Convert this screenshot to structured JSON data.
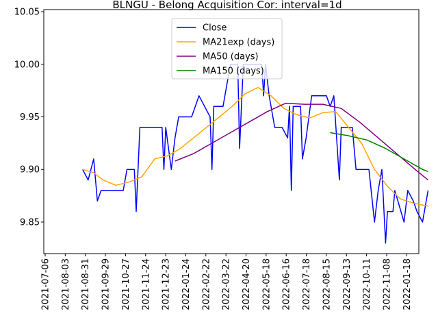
{
  "chart_data": {
    "type": "line",
    "title": "BLNGU - Belong Acquisition Cor: interval=1d",
    "xlabel": "",
    "ylabel": "",
    "xlim": [
      "2021-07-06",
      "2022-01-25"
    ],
    "ylim": [
      9.82,
      10.052
    ],
    "grid": false,
    "legend_position": "upper-center",
    "x_ticks": [
      "2021-07-06",
      "2021-08-03",
      "2021-08-31",
      "2021-09-29",
      "2021-10-27",
      "2021-11-24",
      "2021-12-23",
      "2022-01-24",
      "2022-02-22",
      "2022-03-22",
      "2022-04-20",
      "2022-05-18",
      "2022-06-16",
      "2022-07-18",
      "2022-08-15",
      "2022-09-13",
      "2022-10-11",
      "2022-11-08",
      "2022-01-18"
    ],
    "y_ticks": [
      9.85,
      9.9,
      9.95,
      10.0,
      10.05
    ],
    "y_tick_labels": [
      "9.85",
      "9.90",
      "9.95",
      "10.00",
      "10.05"
    ],
    "series": [
      {
        "name": "Close",
        "color": "#0000ff",
        "points": [
          [
            "2021-07-27",
            9.9
          ],
          [
            "2021-07-30",
            9.89
          ],
          [
            "2021-08-02",
            9.91
          ],
          [
            "2021-08-04",
            9.87
          ],
          [
            "2021-08-06",
            9.88
          ],
          [
            "2021-08-18",
            9.88
          ],
          [
            "2021-08-20",
            9.9
          ],
          [
            "2021-08-24",
            9.9
          ],
          [
            "2021-08-25",
            9.86
          ],
          [
            "2021-08-27",
            9.94
          ],
          [
            "2021-09-08",
            9.94
          ],
          [
            "2021-09-09",
            9.9
          ],
          [
            "2021-09-10",
            9.94
          ],
          [
            "2021-09-13",
            9.9
          ],
          [
            "2021-09-15",
            9.93
          ],
          [
            "2021-09-17",
            9.95
          ],
          [
            "2021-09-20",
            9.95
          ],
          [
            "2021-09-24",
            9.95
          ],
          [
            "2021-09-28",
            9.97
          ],
          [
            "2021-10-01",
            9.96
          ],
          [
            "2021-10-04",
            9.95
          ],
          [
            "2021-10-05",
            9.9
          ],
          [
            "2021-10-06",
            9.96
          ],
          [
            "2021-10-11",
            9.96
          ],
          [
            "2021-10-13",
            9.98
          ],
          [
            "2021-10-15",
            10.0
          ],
          [
            "2021-10-19",
            10.0
          ],
          [
            "2021-10-20",
            9.92
          ],
          [
            "2021-10-22",
            10.0
          ],
          [
            "2021-11-01",
            10.0
          ],
          [
            "2021-11-02",
            9.97
          ],
          [
            "2021-11-03",
            10.0
          ],
          [
            "2021-11-05",
            9.97
          ],
          [
            "2021-11-08",
            9.94
          ],
          [
            "2021-11-12",
            9.94
          ],
          [
            "2021-11-15",
            9.93
          ],
          [
            "2021-11-16",
            9.96
          ],
          [
            "2021-11-17",
            9.88
          ],
          [
            "2021-11-18",
            9.96
          ],
          [
            "2021-11-22",
            9.96
          ],
          [
            "2021-11-23",
            9.91
          ],
          [
            "2021-11-25",
            9.93
          ],
          [
            "2021-11-28",
            9.97
          ],
          [
            "2021-12-06",
            9.97
          ],
          [
            "2021-12-08",
            9.96
          ],
          [
            "2021-12-10",
            9.97
          ],
          [
            "2021-12-13",
            9.89
          ],
          [
            "2021-12-14",
            9.94
          ],
          [
            "2021-12-20",
            9.94
          ],
          [
            "2021-12-22",
            9.9
          ],
          [
            "2021-12-29",
            9.9
          ],
          [
            "2022-01-01",
            9.85
          ],
          [
            "2022-01-03",
            9.88
          ],
          [
            "2022-01-05",
            9.9
          ],
          [
            "2022-01-07",
            9.83
          ],
          [
            "2022-01-08",
            9.86
          ],
          [
            "2022-01-11",
            9.86
          ],
          [
            "2022-01-12",
            9.88
          ],
          [
            "2022-01-17",
            9.85
          ],
          [
            "2022-01-19",
            9.88
          ],
          [
            "2022-01-22",
            9.87
          ],
          [
            "2022-01-24",
            9.86
          ],
          [
            "2022-01-27",
            9.85
          ],
          [
            "2022-01-30",
            9.88
          ]
        ]
      },
      {
        "name": "MA21exp (days)",
        "color": "#ffa500",
        "points": [
          [
            "2021-07-27",
            9.9
          ],
          [
            "2021-08-02",
            9.897
          ],
          [
            "2021-08-07",
            9.89
          ],
          [
            "2021-08-14",
            9.885
          ],
          [
            "2021-08-21",
            9.888
          ],
          [
            "2021-08-28",
            9.893
          ],
          [
            "2021-09-04",
            9.91
          ],
          [
            "2021-09-11",
            9.913
          ],
          [
            "2021-09-18",
            9.92
          ],
          [
            "2021-09-25",
            9.93
          ],
          [
            "2021-10-02",
            9.94
          ],
          [
            "2021-10-09",
            9.95
          ],
          [
            "2021-10-16",
            9.96
          ],
          [
            "2021-10-23",
            9.972
          ],
          [
            "2021-10-30",
            9.978
          ],
          [
            "2021-11-06",
            9.97
          ],
          [
            "2021-11-13",
            9.958
          ],
          [
            "2021-11-20",
            9.952
          ],
          [
            "2021-11-27",
            9.949
          ],
          [
            "2021-12-04",
            9.954
          ],
          [
            "2021-12-11",
            9.955
          ],
          [
            "2021-12-18",
            9.94
          ],
          [
            "2021-12-25",
            9.925
          ],
          [
            "2022-01-01",
            9.9
          ],
          [
            "2022-01-08",
            9.884
          ],
          [
            "2022-01-15",
            9.872
          ],
          [
            "2022-01-22",
            9.868
          ],
          [
            "2022-01-30",
            9.865
          ]
        ]
      },
      {
        "name": "MA50 (days)",
        "color": "#800080",
        "points": [
          [
            "2021-09-15",
            9.908
          ],
          [
            "2021-09-25",
            9.915
          ],
          [
            "2021-10-05",
            9.925
          ],
          [
            "2021-10-15",
            9.935
          ],
          [
            "2021-10-25",
            9.945
          ],
          [
            "2021-11-04",
            9.955
          ],
          [
            "2021-11-14",
            9.963
          ],
          [
            "2021-11-24",
            9.962
          ],
          [
            "2021-12-04",
            9.962
          ],
          [
            "2021-12-14",
            9.958
          ],
          [
            "2021-12-24",
            9.945
          ],
          [
            "2022-01-03",
            9.93
          ],
          [
            "2022-01-13",
            9.915
          ],
          [
            "2022-01-23",
            9.9
          ],
          [
            "2022-01-30",
            9.89
          ]
        ]
      },
      {
        "name": "MA150 (days)",
        "color": "#008000",
        "points": [
          [
            "2021-12-08",
            9.935
          ],
          [
            "2021-12-18",
            9.932
          ],
          [
            "2021-12-28",
            9.928
          ],
          [
            "2022-01-07",
            9.92
          ],
          [
            "2022-01-17",
            9.91
          ],
          [
            "2022-01-27",
            9.9
          ],
          [
            "2022-01-30",
            9.898
          ]
        ]
      }
    ]
  }
}
